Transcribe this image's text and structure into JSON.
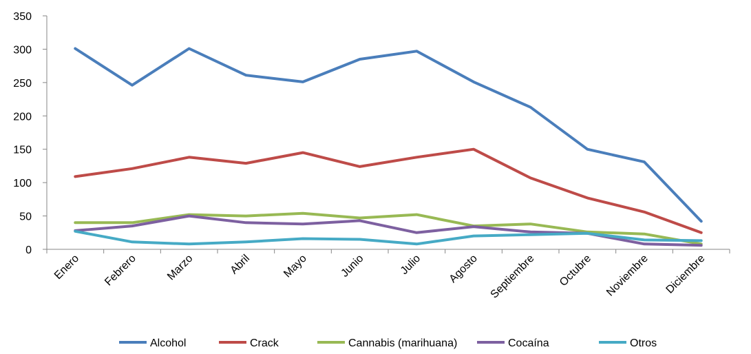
{
  "chart_data": {
    "type": "line",
    "categories": [
      "Enero",
      "Febrero",
      "Marzo",
      "Abril",
      "Mayo",
      "Junio",
      "Julio",
      "Agosto",
      "Septiembre",
      "Octubre",
      "Noviembre",
      "Diciembre"
    ],
    "ylim": [
      0,
      350
    ],
    "yticks": [
      "0",
      "50",
      "100",
      "150",
      "200",
      "250",
      "300",
      "350"
    ],
    "grid": false,
    "legend_position": "bottom",
    "series": [
      {
        "name": "Alcohol",
        "color": "#4A7EBB",
        "values": [
          301,
          246,
          301,
          261,
          251,
          285,
          297,
          251,
          213,
          150,
          131,
          42
        ]
      },
      {
        "name": "Crack",
        "color": "#BE4B48",
        "values": [
          109,
          121,
          138,
          129,
          145,
          124,
          138,
          150,
          107,
          77,
          56,
          25
        ]
      },
      {
        "name": "Cannabis (marihuana)",
        "color": "#98B954",
        "values": [
          40,
          40,
          52,
          50,
          54,
          47,
          52,
          35,
          38,
          26,
          23,
          8
        ]
      },
      {
        "name": "Cocaína",
        "color": "#7D60A0",
        "values": [
          28,
          35,
          50,
          40,
          38,
          43,
          25,
          34,
          26,
          24,
          8,
          6
        ]
      },
      {
        "name": "Otros",
        "color": "#46AAC5",
        "values": [
          27,
          11,
          8,
          11,
          16,
          15,
          8,
          20,
          22,
          24,
          14,
          13
        ]
      }
    ]
  }
}
